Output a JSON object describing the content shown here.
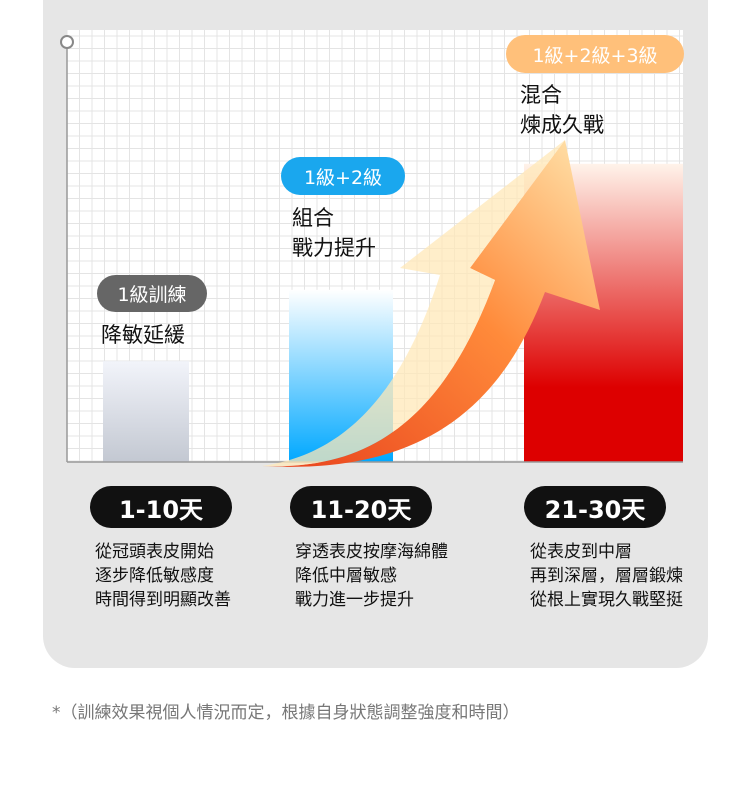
{
  "chart_data": {
    "type": "bar",
    "categories": [
      "1-10天",
      "11-20天",
      "21-30天"
    ],
    "levels_fraction_of_plot": [
      0.24,
      0.41,
      0.71
    ],
    "bar_colors": [
      [
        "#f2f4fa",
        "#c3c8d2"
      ],
      [
        "#ffffff",
        "#00a8ff"
      ],
      [
        "#fff3ea",
        "#dd0000"
      ]
    ],
    "grid": true,
    "trend_arrow": {
      "direction": "up-right",
      "colors": [
        "#ffe7b0",
        "#ff8a3a",
        "#e8401c"
      ]
    }
  },
  "stages": [
    {
      "badge": "1級訓練",
      "badge_color": "#666666",
      "title_lines": [
        "降敏延緩"
      ],
      "day": "1-10天",
      "desc": [
        "從冠頭表皮開始",
        "逐步降低敏感度",
        "時間得到明顯改善"
      ]
    },
    {
      "badge": "1級+2級",
      "badge_color": "#1aa7ee",
      "title_lines": [
        "組合",
        "戰力提升"
      ],
      "day": "11-20天",
      "desc": [
        "穿透表皮按摩海綿體",
        "降低中層敏感",
        "戰力進一步提升"
      ]
    },
    {
      "badge": "1級+2級+3級",
      "badge_color": "#ffc07a",
      "title_lines": [
        "混合",
        "煉成久戰"
      ],
      "day": "21-30天",
      "desc": [
        "從表皮到中層",
        "再到深層，層層鍛煉",
        "從根上實現久戰堅挺"
      ]
    }
  ],
  "footnote": "*（訓練效果視個人情況而定，根據自身狀態調整強度和時間）"
}
